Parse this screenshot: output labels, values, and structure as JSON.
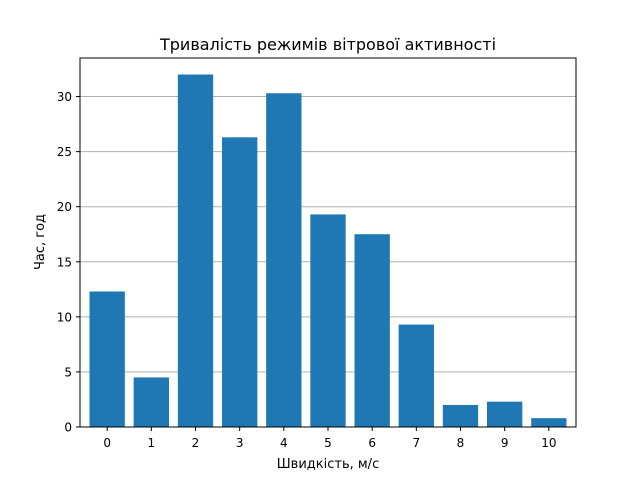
{
  "chart_data": {
    "type": "bar",
    "title": "Тривалість режимів вітрової активності",
    "xlabel": "Швидкість, м/с",
    "ylabel": "Час, год",
    "categories": [
      "0",
      "1",
      "2",
      "3",
      "4",
      "5",
      "6",
      "7",
      "8",
      "9",
      "10"
    ],
    "values": [
      12.3,
      4.5,
      32.0,
      26.3,
      30.3,
      19.3,
      17.5,
      9.3,
      2.0,
      2.3,
      0.8
    ],
    "ylim": [
      0,
      33.5
    ],
    "yticks": [
      "0",
      "5",
      "10",
      "15",
      "20",
      "25",
      "30"
    ],
    "grid": "y-major",
    "bar_color": "#1f77b4",
    "grid_color": "#b0b0b0"
  }
}
